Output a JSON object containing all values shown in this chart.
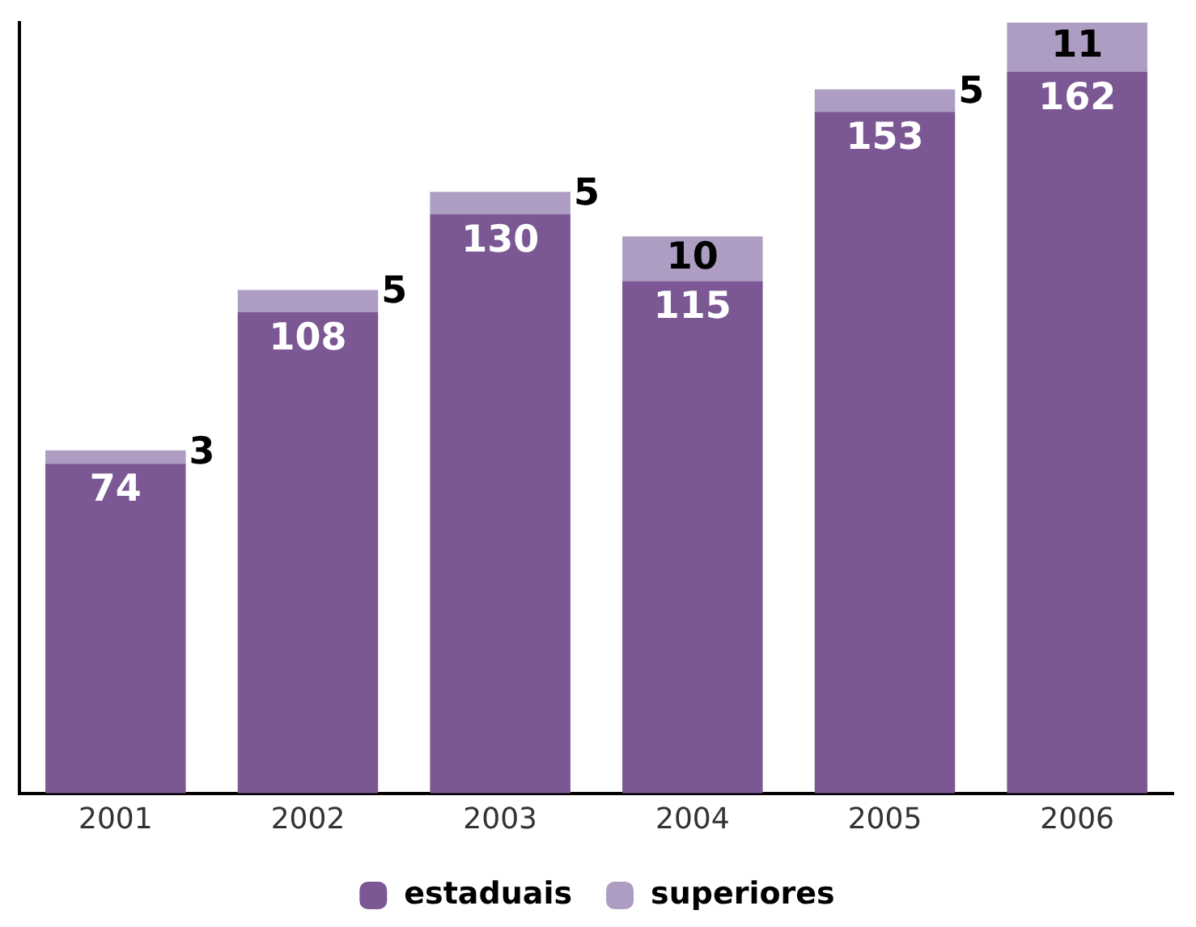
{
  "chart_data": {
    "type": "bar",
    "stacked": true,
    "categories": [
      "2001",
      "2002",
      "2003",
      "2004",
      "2005",
      "2006"
    ],
    "series": [
      {
        "name": "estaduais",
        "color": "#7b5794",
        "values": [
          74,
          108,
          130,
          115,
          153,
          162
        ]
      },
      {
        "name": "superiores",
        "color": "#ae9dc3",
        "values": [
          3,
          5,
          5,
          10,
          5,
          11
        ]
      }
    ],
    "ylim": [
      0,
      173
    ],
    "data_labels": true,
    "legend": "bottom",
    "grid": false
  }
}
